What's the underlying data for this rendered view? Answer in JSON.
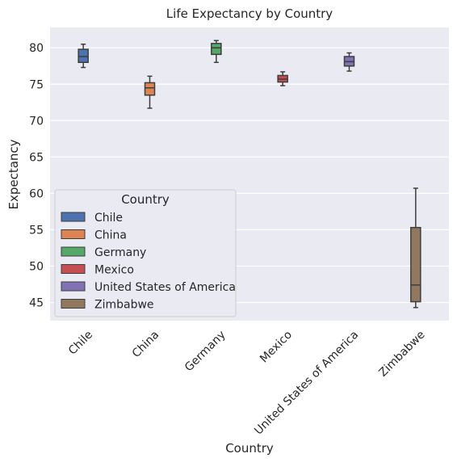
{
  "chart_data": {
    "type": "box",
    "title": "Life Expectancy by Country",
    "xlabel": "Country",
    "ylabel": "Expectancy",
    "ylim": [
      42.5,
      82.8
    ],
    "yticks": [
      45,
      50,
      55,
      60,
      65,
      70,
      75,
      80
    ],
    "grid": true,
    "legend": {
      "title": "Country",
      "placement": "lower-left"
    },
    "categories": [
      "Chile",
      "China",
      "Germany",
      "Mexico",
      "United States of America",
      "Zimbabwe"
    ],
    "series": [
      {
        "name": "Chile",
        "color": "#4c72b0",
        "min": 77.3,
        "q1": 78.0,
        "median": 78.8,
        "q3": 79.8,
        "max": 80.5
      },
      {
        "name": "China",
        "color": "#dd8452",
        "min": 71.7,
        "q1": 73.5,
        "median": 74.5,
        "q3": 75.2,
        "max": 76.1
      },
      {
        "name": "Germany",
        "color": "#55a868",
        "min": 78.0,
        "q1": 79.1,
        "median": 80.0,
        "q3": 80.6,
        "max": 81.0
      },
      {
        "name": "Mexico",
        "color": "#c44e52",
        "min": 74.8,
        "q1": 75.3,
        "median": 75.7,
        "q3": 76.2,
        "max": 76.7
      },
      {
        "name": "United States of America",
        "color": "#8172b3",
        "min": 76.8,
        "q1": 77.5,
        "median": 78.1,
        "q3": 78.8,
        "max": 79.3
      },
      {
        "name": "Zimbabwe",
        "color": "#937860",
        "min": 44.3,
        "q1": 45.1,
        "median": 47.4,
        "q3": 55.3,
        "max": 60.7
      }
    ]
  }
}
